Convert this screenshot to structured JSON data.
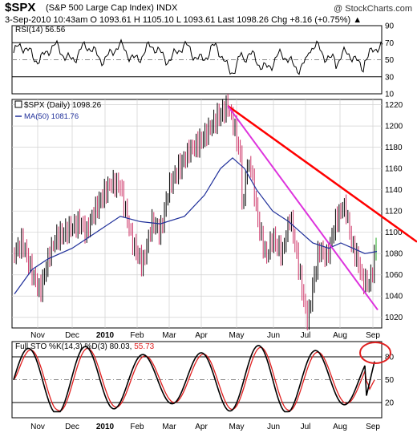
{
  "header": {
    "symbol": "$SPX",
    "name": "(S&P 500 Large Cap Index) INDX",
    "watermark": "@ StockCharts.com",
    "quote": "3-Sep-2010 10:43am   O 1093.61  H 1105.10  L 1093.61  Last 1098.26  Chg +8.16 (+0.75%) ▲"
  },
  "panels": {
    "rsi_label": "RSI(14) 56.56",
    "price_label": "$SPX (Daily) 1098.26",
    "ma_label": "MA(50) 1081.76",
    "sto_label_prefix": "Full STO %K(14,3) %D(3) 80.03, ",
    "sto_label_value": "55.73"
  },
  "colors": {
    "price_bar": "#000000",
    "down_bar": "#cc3366",
    "ma_line": "#1f2f9a",
    "trend_red": "#ff0000",
    "trend_magenta": "#dd33dd",
    "stoch_k": "#000000",
    "stoch_d": "#e02020",
    "circle": "#e02020",
    "up_last": "#22aa22"
  },
  "chart_data": [
    {
      "type": "line",
      "title": "RSI(14) 56.56",
      "ylim": [
        10,
        90
      ],
      "yticks": [
        10,
        30,
        50,
        70,
        90
      ],
      "reference_lines": [
        30,
        50,
        70
      ],
      "current_value": 56.56
    },
    {
      "type": "bar",
      "title": "$SPX (Daily) 1098.26",
      "subtitle": "MA(50) 1081.76",
      "x_tick_labels": [
        "Nov",
        "Dec",
        "2010",
        "Feb",
        "Mar",
        "Apr",
        "May",
        "Jun",
        "Jul",
        "Aug",
        "Sep"
      ],
      "ylim": [
        1010,
        1225
      ],
      "yticks": [
        1020,
        1040,
        1060,
        1080,
        1100,
        1120,
        1140,
        1160,
        1180,
        1200,
        1220
      ],
      "series": [
        {
          "name": "$SPX (Daily)",
          "last": 1098.26
        },
        {
          "name": "MA(50)",
          "last": 1081.76
        }
      ],
      "trend_lines": [
        {
          "from": {
            "x": "Apr",
            "y": 1219
          },
          "to": {
            "x": "Sep",
            "y": 1100
          }
        },
        {
          "from": {
            "x": "Apr",
            "y": 1219
          },
          "to": {
            "x": "Sep",
            "y": 1027
          }
        }
      ]
    },
    {
      "type": "line",
      "title": "Full STO %K(14,3) %D(3) 80.03, 55.73",
      "ylim": [
        0,
        100
      ],
      "yticks": [
        20,
        50,
        80
      ],
      "reference_lines": [
        20,
        50,
        80
      ],
      "x_tick_labels": [
        "Nov",
        "Dec",
        "2010",
        "Feb",
        "Mar",
        "Apr",
        "May",
        "Jun",
        "Jul",
        "Aug",
        "Sep"
      ],
      "series": [
        {
          "name": "%K(14,3)",
          "last": 80.03
        },
        {
          "name": "%D(3)",
          "last": 55.73
        }
      ]
    }
  ]
}
